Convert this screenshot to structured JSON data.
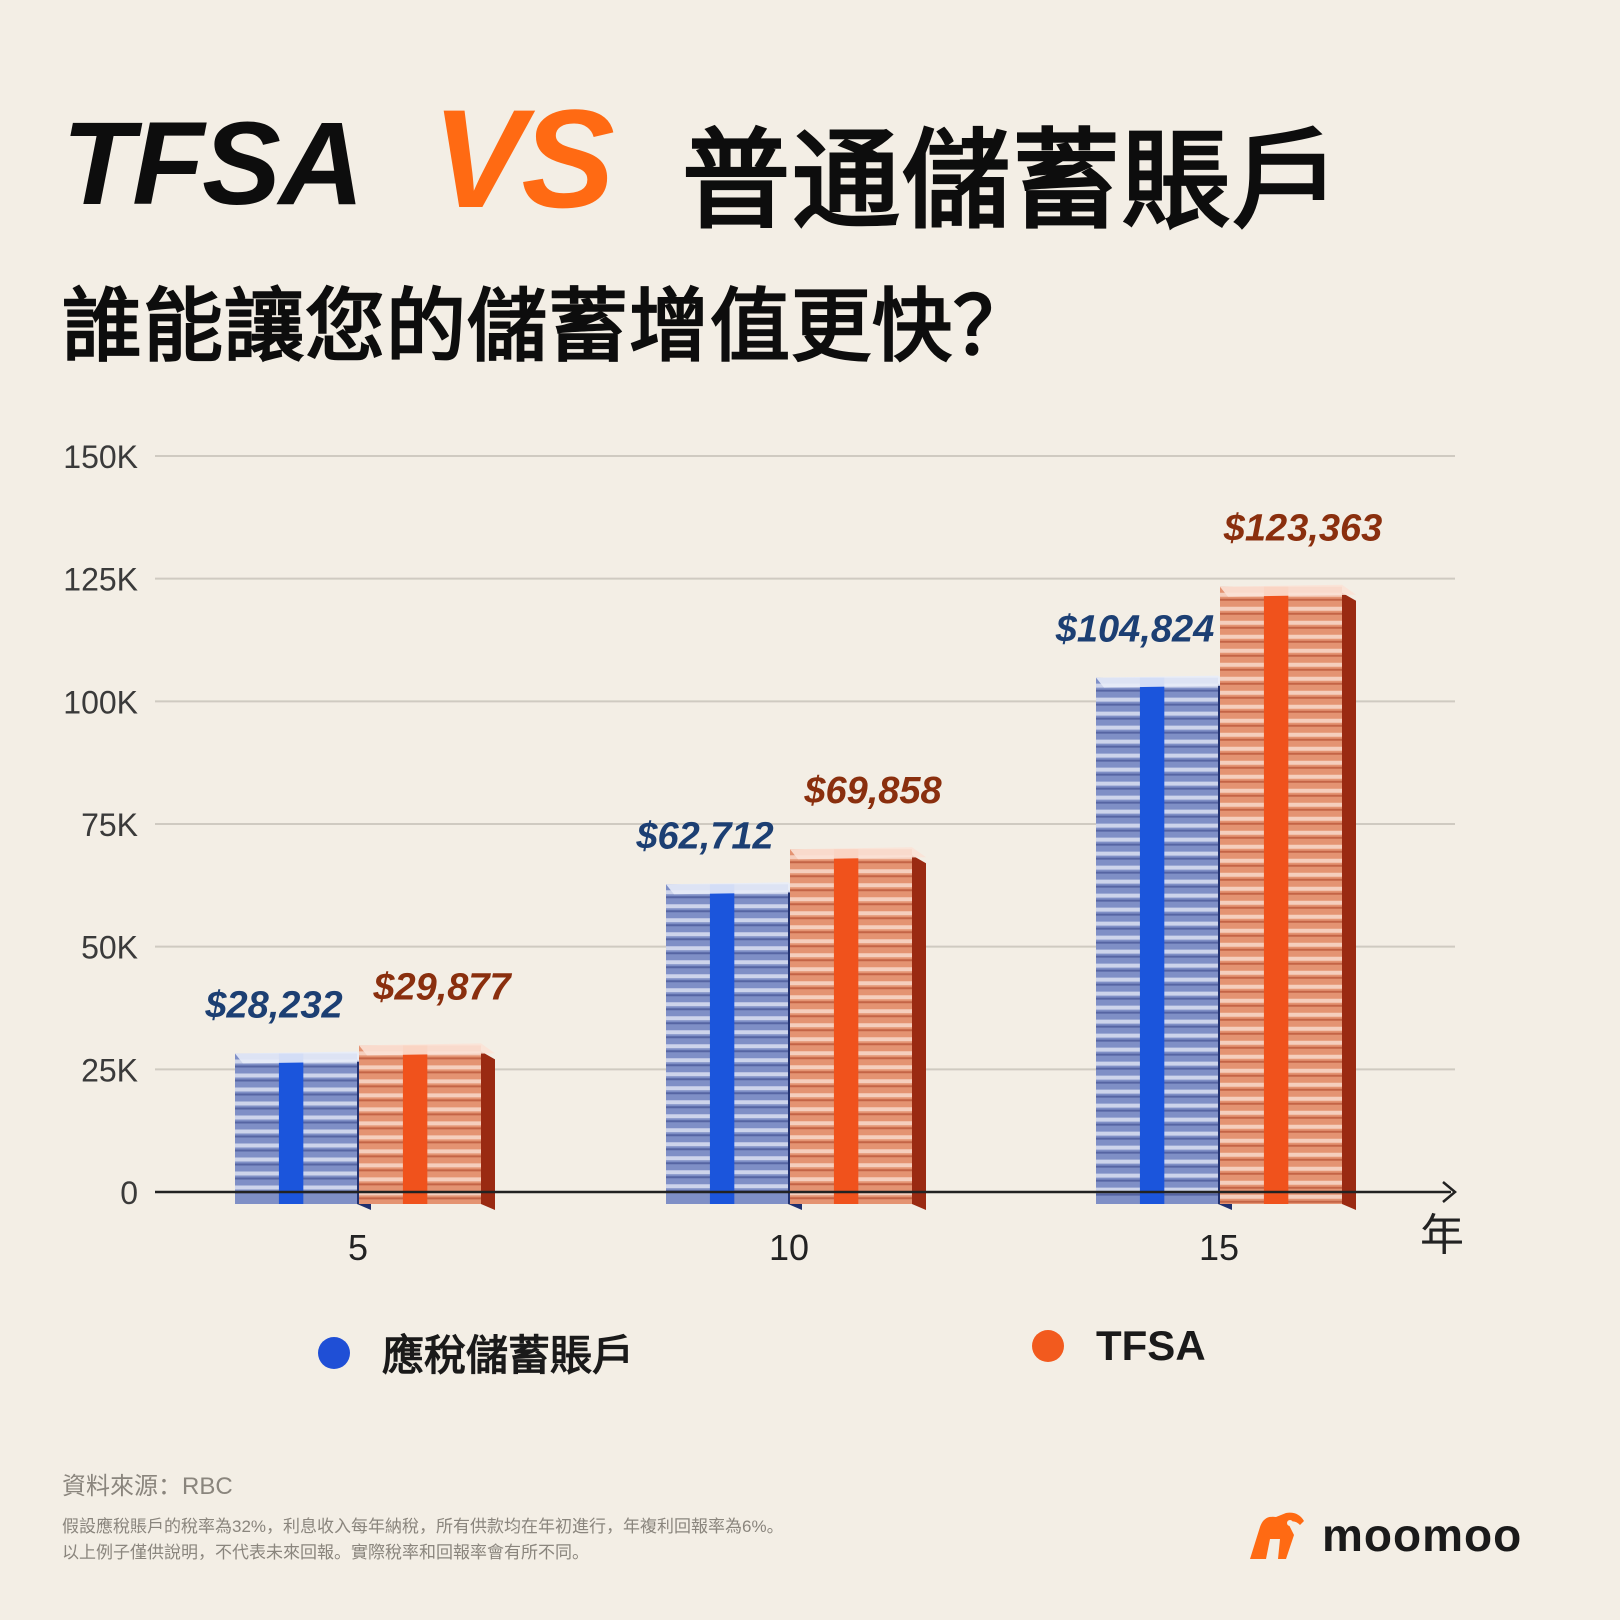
{
  "header": {
    "title_left": "TFSA",
    "title_vs": "VS",
    "title_right": "普通儲蓄賬戶",
    "subtitle": "誰能讓您的儲蓄增值更快？"
  },
  "colors": {
    "background": "#f3eee5",
    "accent": "#ff6a13",
    "taxable": "#1f4fd6",
    "tfsa": "#f25a1e",
    "taxable_label": "#1c3f73",
    "tfsa_label": "#8a2f0e"
  },
  "chart_data": {
    "type": "bar",
    "categories": [
      "5",
      "10",
      "15"
    ],
    "xlabel": "年",
    "ylabel": "",
    "ylim": [
      0,
      150000
    ],
    "yticks": [
      0,
      25000,
      50000,
      75000,
      100000,
      125000,
      150000
    ],
    "ytick_labels": [
      "0",
      "25K",
      "50K",
      "75K",
      "100K",
      "125K",
      "150K"
    ],
    "grid": true,
    "legend_position": "bottom",
    "series": [
      {
        "name": "應稅儲蓄賬戶",
        "values": [
          28232,
          62712,
          104824
        ],
        "labels": [
          "$28,232",
          "$62,712",
          "$104,824"
        ]
      },
      {
        "name": "TFSA",
        "values": [
          29877,
          69858,
          123363
        ],
        "labels": [
          "$29,877",
          "$69,858",
          "$123,363"
        ]
      }
    ]
  },
  "footer": {
    "source": "資料來源：RBC",
    "notes": [
      "假設應稅賬戶的稅率為32%，利息收入每年納稅，所有供款均在年初進行，年複利回報率為6%。",
      "以上例子僅供說明，不代表未來回報。實際稅率和回報率會有所不同。"
    ],
    "brand": "moomoo"
  }
}
